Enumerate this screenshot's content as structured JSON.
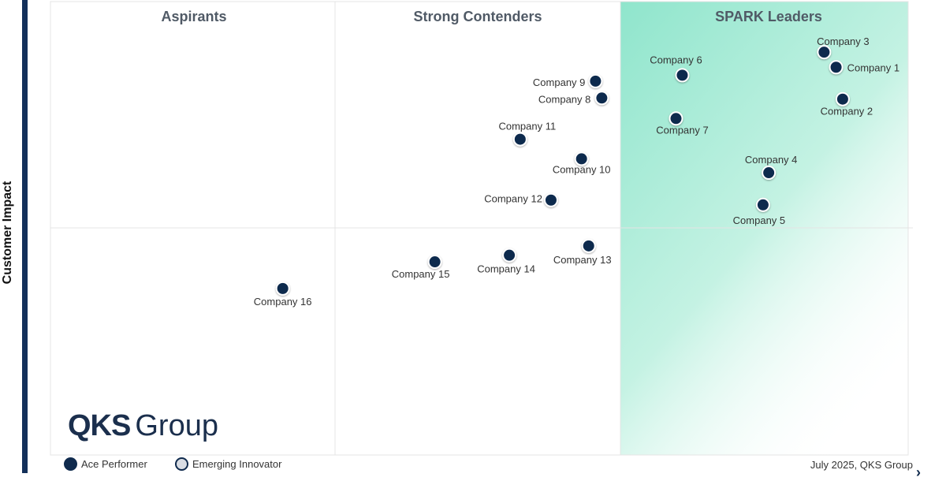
{
  "chart_data": {
    "type": "scatter",
    "ylabel": "Customer Impact",
    "xlabel": "",
    "xlim": [
      0,
      3
    ],
    "ylim": [
      0,
      2
    ],
    "quadrants": [
      "Aspirants",
      "Strong Contenders",
      "SPARK Leaders"
    ],
    "points": [
      {
        "name": "Company 1",
        "x": 2.753,
        "y": 1.705
      },
      {
        "name": "Company 2",
        "x": 2.776,
        "y": 1.565
      },
      {
        "name": "Company 3",
        "x": 2.711,
        "y": 1.771
      },
      {
        "name": "Company 4",
        "x": 2.517,
        "y": 1.242
      },
      {
        "name": "Company 5",
        "x": 2.497,
        "y": 1.101
      },
      {
        "name": "Company 6",
        "x": 2.214,
        "y": 1.67
      },
      {
        "name": "Company 7",
        "x": 2.192,
        "y": 1.48
      },
      {
        "name": "Company 8",
        "x": 1.932,
        "y": 1.57
      },
      {
        "name": "Company 9",
        "x": 1.91,
        "y": 1.644
      },
      {
        "name": "Company 10",
        "x": 1.861,
        "y": 1.303
      },
      {
        "name": "Company 11",
        "x": 1.646,
        "y": 1.389
      },
      {
        "name": "Company 12",
        "x": 1.754,
        "y": 1.122
      },
      {
        "name": "Company 13",
        "x": 1.886,
        "y": 0.921
      },
      {
        "name": "Company 14",
        "x": 1.608,
        "y": 0.88
      },
      {
        "name": "Company 15",
        "x": 1.347,
        "y": 0.851
      },
      {
        "name": "Company 16",
        "x": 0.814,
        "y": 0.734
      }
    ]
  },
  "brand": {
    "name_bold": "QKS",
    "name_light": "Group"
  },
  "legend": {
    "ace": "Ace Performer",
    "emerging": "Emerging Innovator"
  },
  "footer": {
    "date": "July 2025, QKS Group"
  },
  "colors": {
    "point": "#0f2a4d",
    "leaders_gradient": "#8fe5cc",
    "accent_bar": "#13305a"
  }
}
